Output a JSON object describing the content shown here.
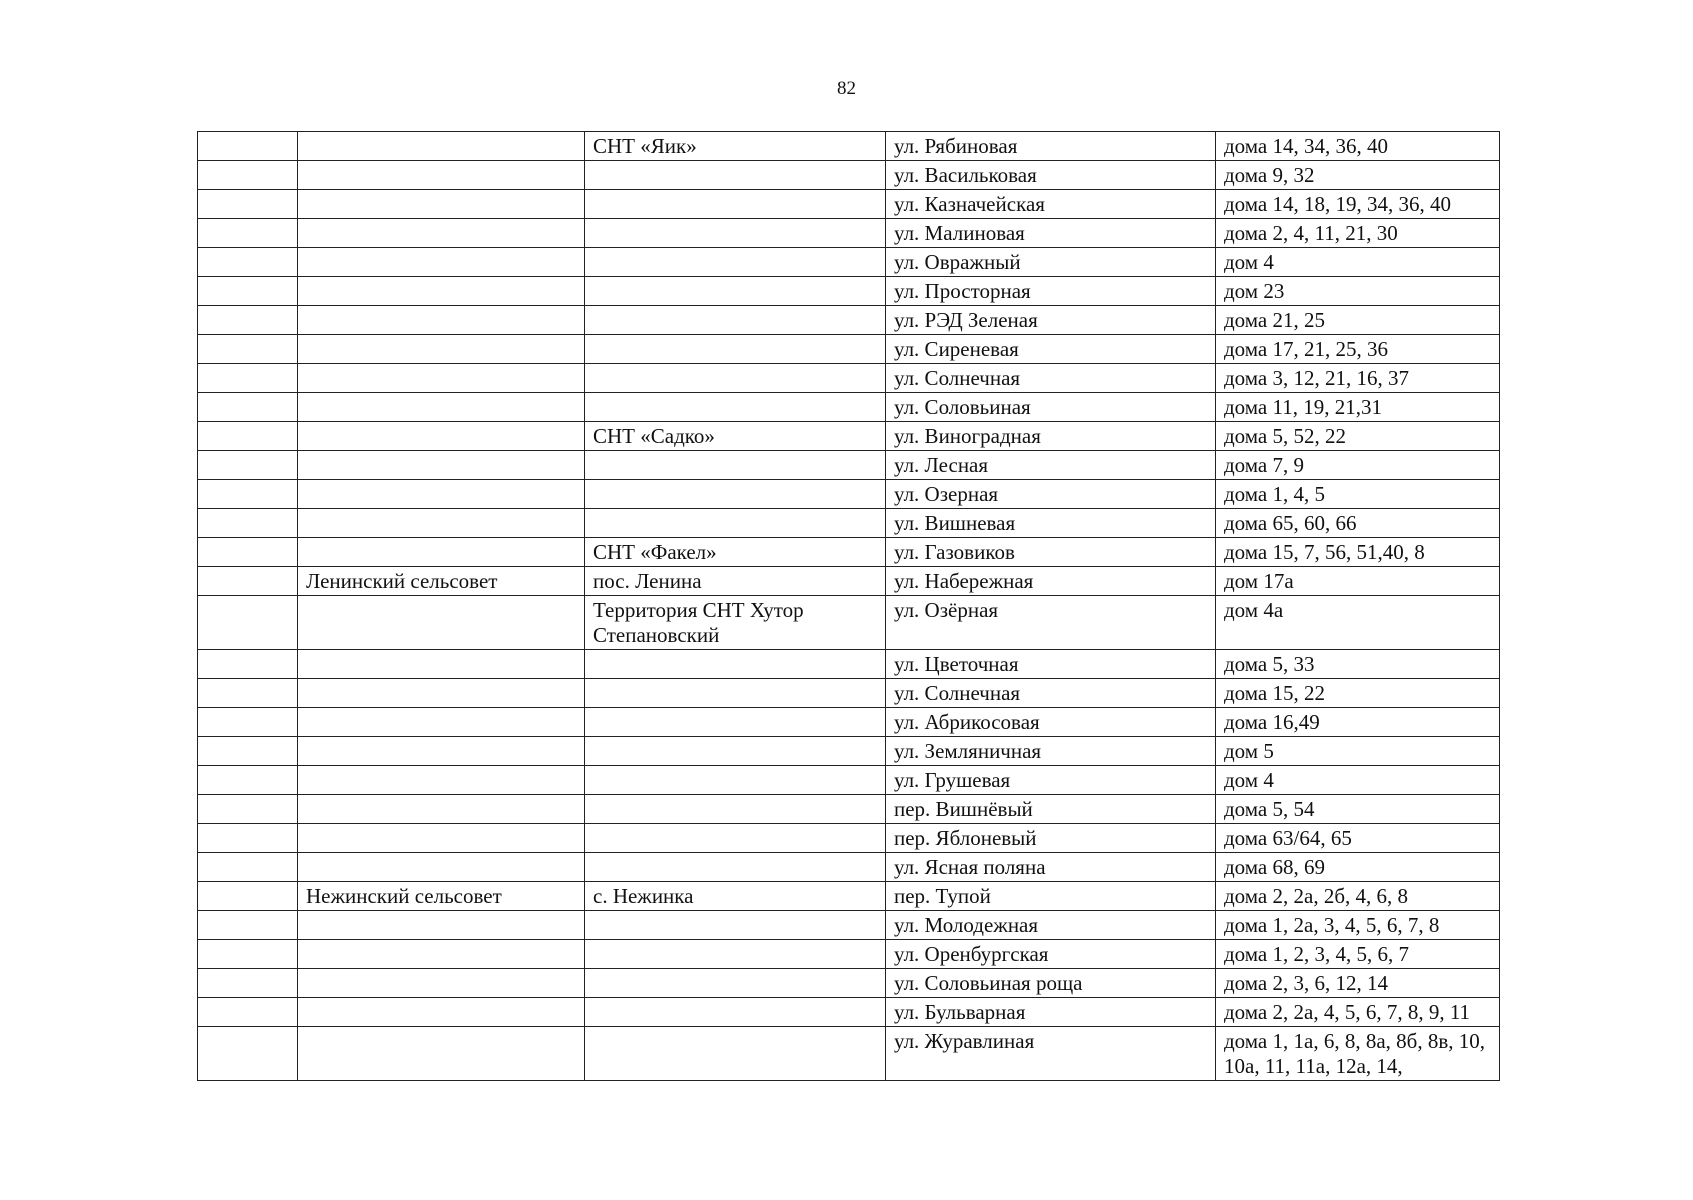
{
  "page_number": "82",
  "table": {
    "rows": [
      [
        "",
        "",
        "СНТ «Яик»",
        "ул. Рябиновая",
        "дома 14, 34, 36, 40"
      ],
      [
        "",
        "",
        "",
        "ул. Васильковая",
        "дома 9, 32"
      ],
      [
        "",
        "",
        "",
        "ул. Казначейская",
        "дома 14, 18, 19, 34, 36, 40"
      ],
      [
        "",
        "",
        "",
        "ул. Малиновая",
        "дома 2, 4, 11, 21, 30"
      ],
      [
        "",
        "",
        "",
        "ул. Овражный",
        "дом 4"
      ],
      [
        "",
        "",
        "",
        "ул. Просторная",
        "дом 23"
      ],
      [
        "",
        "",
        "",
        "ул. РЭД Зеленая",
        "дома 21, 25"
      ],
      [
        "",
        "",
        "",
        "ул. Сиреневая",
        "дома 17, 21, 25, 36"
      ],
      [
        "",
        "",
        "",
        "ул. Солнечная",
        "дома 3, 12, 21, 16, 37"
      ],
      [
        "",
        "",
        "",
        "ул. Соловьиная",
        "дома 11, 19, 21,31"
      ],
      [
        "",
        "",
        "СНТ «Садко»",
        "ул. Виноградная",
        "дома 5, 52, 22"
      ],
      [
        "",
        "",
        "",
        "ул. Лесная",
        "дома 7, 9"
      ],
      [
        "",
        "",
        "",
        "ул. Озерная",
        "дома 1, 4, 5"
      ],
      [
        "",
        "",
        "",
        "ул. Вишневая",
        "дома 65, 60, 66"
      ],
      [
        "",
        "",
        "СНТ  «Факел»",
        "ул. Газовиков",
        "дома 15, 7, 56, 51,40, 8"
      ],
      [
        "",
        "Ленинский сельсовет",
        "пос. Ленина",
        "ул. Набережная",
        "дом 17а"
      ],
      [
        "",
        "",
        "Территория СНТ Хутор Степановский",
        "ул. Озёрная",
        "дом 4а"
      ],
      [
        "",
        "",
        "",
        "ул. Цветочная",
        "дома 5, 33"
      ],
      [
        "",
        "",
        "",
        "ул. Солнечная",
        "дома 15, 22"
      ],
      [
        "",
        "",
        "",
        "ул. Абрикосовая",
        "дома 16,49"
      ],
      [
        "",
        "",
        "",
        "ул. Земляничная",
        "дом 5"
      ],
      [
        "",
        "",
        "",
        "ул. Грушевая",
        "дом 4"
      ],
      [
        "",
        "",
        "",
        "пер. Вишнёвый",
        "дома 5, 54"
      ],
      [
        "",
        "",
        "",
        "пер. Яблоневый",
        "дома 63/64, 65"
      ],
      [
        "",
        "",
        "",
        "ул. Ясная поляна",
        "дома 68, 69"
      ],
      [
        "",
        "Нежинский сельсовет",
        "с. Нежинка",
        "пер. Тупой",
        "дома 2, 2а, 2б, 4, 6, 8"
      ],
      [
        "",
        "",
        "",
        "ул. Молодежная",
        "дома 1, 2а, 3, 4, 5, 6, 7, 8"
      ],
      [
        "",
        "",
        "",
        "ул. Оренбургская",
        "дома  1, 2, 3, 4, 5, 6, 7"
      ],
      [
        "",
        "",
        "",
        "ул. Соловьиная роща",
        "дома  2, 3, 6, 12, 14"
      ],
      [
        "",
        "",
        "",
        "ул. Бульварная",
        "дома 2, 2а, 4, 5, 6, 7, 8, 9, 11"
      ],
      [
        "",
        "",
        "",
        "ул. Журавлиная",
        "дома  1, 1а, 6, 8, 8а, 8б, 8в, 10, 10а, 11, 11а, 12а, 14,"
      ]
    ]
  }
}
